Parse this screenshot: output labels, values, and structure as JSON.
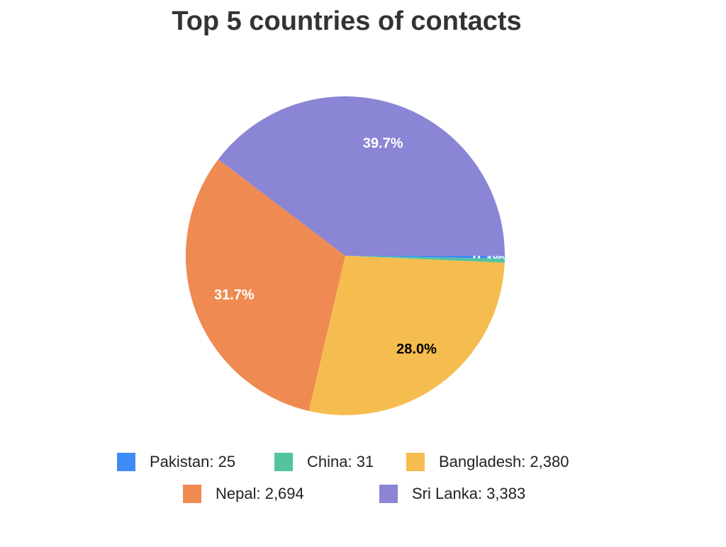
{
  "chart_data": {
    "type": "pie",
    "title": "Top 5 countries of contacts",
    "categories": [
      "Pakistan: 25",
      "China: 31",
      "Bangladesh: 2,380",
      "Nepal: 2,694",
      "Sri Lanka: 3,383"
    ],
    "values": [
      0.3,
      0.4,
      28.0,
      31.7,
      39.7
    ],
    "value_labels": [
      "0.3%",
      "0.4%",
      "28.0%",
      "31.7%",
      "39.7%"
    ],
    "colors": [
      "#3f8bf5",
      "#55c3a0",
      "#f5bd4f",
      "#ef8a52",
      "#8b85d5"
    ],
    "label_colors": [
      "#ffffff",
      "#ffffff",
      "#000000",
      "#ffffff",
      "#ffffff"
    ]
  }
}
